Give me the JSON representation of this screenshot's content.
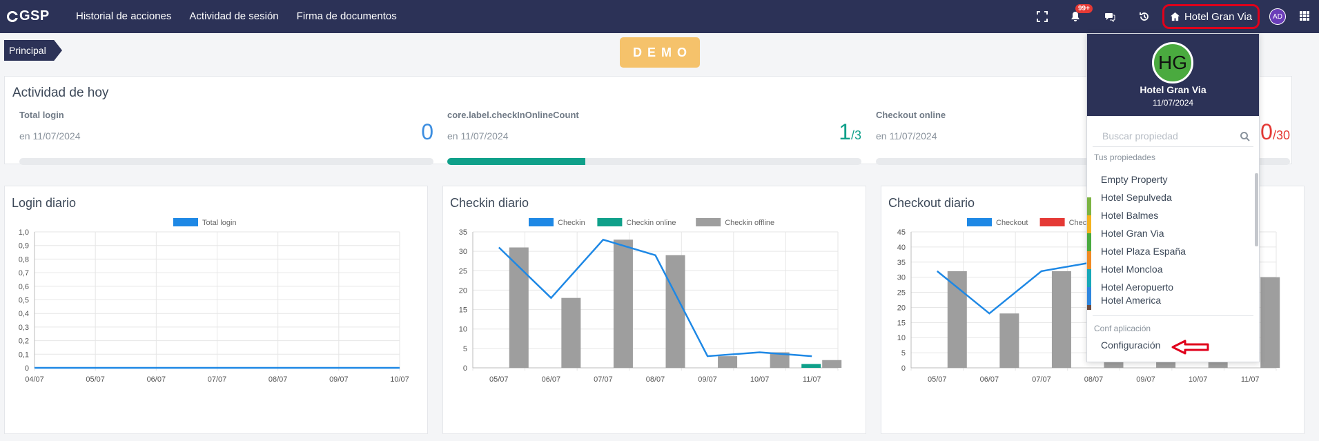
{
  "app": {
    "logo": "GSP"
  },
  "nav": {
    "links": [
      "Historial de acciones",
      "Actividad de sesión",
      "Firma de documentos"
    ],
    "notification_count": "99+",
    "property_label": "Hotel Gran Via",
    "user_initials": "AD"
  },
  "breadcrumb": "Principal",
  "demo_badge": "DEMO",
  "activity": {
    "title": "Actividad de hoy",
    "stats": [
      {
        "label": "Total login",
        "date": "en 11/07/2024",
        "value": "0",
        "total": "",
        "progress": 0,
        "color": "#3d8ee0"
      },
      {
        "label": "core.label.checkInOnlineCount",
        "date": "en 11/07/2024",
        "value": "1",
        "total": "/3",
        "progress": 0.333,
        "color": "#0fa08a"
      },
      {
        "label": "Checkout online",
        "date": "en 11/07/2024",
        "value": "0",
        "total": "/30",
        "progress": 0,
        "color": "#e53935"
      }
    ]
  },
  "dropdown": {
    "initials": "HG",
    "name": "Hotel Gran Via",
    "date": "11/07/2024",
    "search_placeholder": "Buscar propiedad",
    "section_properties": "Tus propiedades",
    "properties": [
      {
        "name": "Empty Property",
        "color": ""
      },
      {
        "name": "Hotel Sepulveda",
        "color": "#7cb342"
      },
      {
        "name": "Hotel Balmes",
        "color": "#f4b21f"
      },
      {
        "name": "Hotel Gran Via",
        "color": "#4aaa3f"
      },
      {
        "name": "Hotel Plaza España",
        "color": "#f08a24"
      },
      {
        "name": "Hotel Moncloa",
        "color": "#17a8b8"
      },
      {
        "name": "Hotel Aeropuerto",
        "color": "#2e86de"
      },
      {
        "name": "Hotel America",
        "color": "#6d4c41"
      }
    ],
    "section_app": "Conf aplicación",
    "config_label": "Configuración"
  },
  "colors": {
    "navy": "#2c3257",
    "checkin": "#1e88e5",
    "online": "#0fa08a",
    "offline": "#9e9e9e",
    "checkout_online": "#e53935"
  },
  "chart_data": [
    {
      "type": "line",
      "title": "Login diario",
      "categories": [
        "04/07",
        "05/07",
        "06/07",
        "07/07",
        "08/07",
        "09/07",
        "10/07"
      ],
      "series": [
        {
          "name": "Total login",
          "type": "line",
          "color": "#1e88e5",
          "values": [
            0,
            0,
            0,
            0,
            0,
            0,
            0
          ]
        }
      ],
      "ylim": [
        0,
        1
      ],
      "yticks": [
        "0",
        "0,1",
        "0,2",
        "0,3",
        "0,4",
        "0,5",
        "0,6",
        "0,7",
        "0,8",
        "0,9",
        "1,0"
      ],
      "legend": "top"
    },
    {
      "type": "bar",
      "title": "Checkin diario",
      "categories": [
        "05/07",
        "06/07",
        "07/07",
        "08/07",
        "09/07",
        "10/07",
        "11/07"
      ],
      "series": [
        {
          "name": "Checkin",
          "type": "line",
          "color": "#1e88e5",
          "values": [
            31,
            18,
            33,
            29,
            3,
            4,
            3
          ]
        },
        {
          "name": "Checkin online",
          "type": "bar",
          "color": "#0fa08a",
          "values": [
            0,
            0,
            0,
            0,
            0,
            0,
            1
          ]
        },
        {
          "name": "Checkin offline",
          "type": "bar",
          "color": "#9e9e9e",
          "values": [
            31,
            18,
            33,
            29,
            3,
            4,
            2
          ]
        }
      ],
      "ylim": [
        0,
        35
      ],
      "yticks": [
        "0",
        "5",
        "10",
        "15",
        "20",
        "25",
        "30",
        "35"
      ],
      "legend": "top"
    },
    {
      "type": "bar",
      "title": "Checkout diario",
      "categories": [
        "05/07",
        "06/07",
        "07/07",
        "08/07",
        "09/07",
        "10/07",
        "11/07"
      ],
      "series": [
        {
          "name": "Checkout",
          "type": "line",
          "color": "#1e88e5",
          "values": [
            32,
            18,
            32,
            35,
            null,
            null,
            30
          ]
        },
        {
          "name": "Check",
          "type": "bar",
          "color": "#e53935",
          "values": [
            0,
            0,
            0,
            0,
            0,
            0,
            0
          ]
        },
        {
          "name": "",
          "type": "bar",
          "color": "#9e9e9e",
          "values": [
            32,
            18,
            32,
            12,
            12,
            12,
            30
          ]
        }
      ],
      "ylim": [
        0,
        45
      ],
      "yticks": [
        "0",
        "5",
        "10",
        "15",
        "20",
        "25",
        "30",
        "35",
        "40",
        "45"
      ],
      "legend": "top"
    }
  ]
}
